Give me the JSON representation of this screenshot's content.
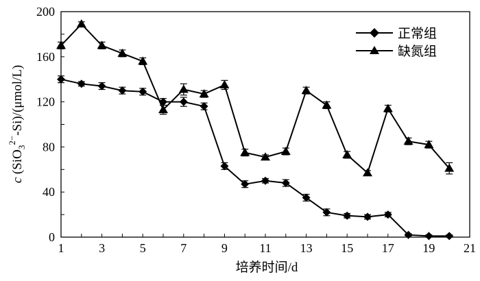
{
  "chart_data": {
    "type": "line",
    "xlabel": "培养时间/d",
    "ylabel_parts": {
      "c": "c",
      "open": " (SiO",
      "sub3": "3",
      "sup2": "2−",
      "rest": "-Si)/(μmol/L)"
    },
    "xlim": [
      1,
      21
    ],
    "ylim": [
      0,
      200
    ],
    "x_ticks": [
      "1",
      "3",
      "5",
      "7",
      "9",
      "11",
      "13",
      "15",
      "17",
      "19",
      "21"
    ],
    "y_ticks": [
      "0",
      "40",
      "80",
      "120",
      "160",
      "200"
    ],
    "legend_position": "top-right",
    "series": [
      {
        "name": "正常组",
        "marker": "diamond",
        "color": "#000000",
        "x": [
          1,
          2,
          3,
          4,
          5,
          6,
          7,
          8,
          9,
          10,
          11,
          12,
          13,
          14,
          15,
          16,
          17,
          18,
          19,
          20
        ],
        "values": [
          140,
          136,
          134,
          130,
          129,
          120,
          120,
          116,
          63,
          47,
          50,
          48,
          35,
          22,
          19,
          18,
          20,
          2,
          1,
          1
        ],
        "errors": [
          3,
          2,
          3,
          3,
          3,
          3,
          4,
          3,
          3,
          3,
          2,
          3,
          3,
          3,
          2,
          2,
          2,
          1,
          1,
          1
        ]
      },
      {
        "name": "缺氮组",
        "marker": "triangle",
        "color": "#000000",
        "x": [
          1,
          2,
          3,
          4,
          5,
          6,
          7,
          8,
          9,
          10,
          11,
          12,
          13,
          14,
          15,
          16,
          17,
          18,
          19,
          20
        ],
        "values": [
          170,
          189,
          170,
          163,
          156,
          113,
          131,
          127,
          135,
          75,
          71,
          76,
          130,
          117,
          73,
          57,
          114,
          85,
          82,
          61
        ],
        "errors": [
          3,
          2,
          3,
          3,
          3,
          4,
          5,
          3,
          4,
          3,
          2,
          3,
          3,
          3,
          3,
          2,
          3,
          3,
          3,
          5
        ]
      }
    ]
  }
}
